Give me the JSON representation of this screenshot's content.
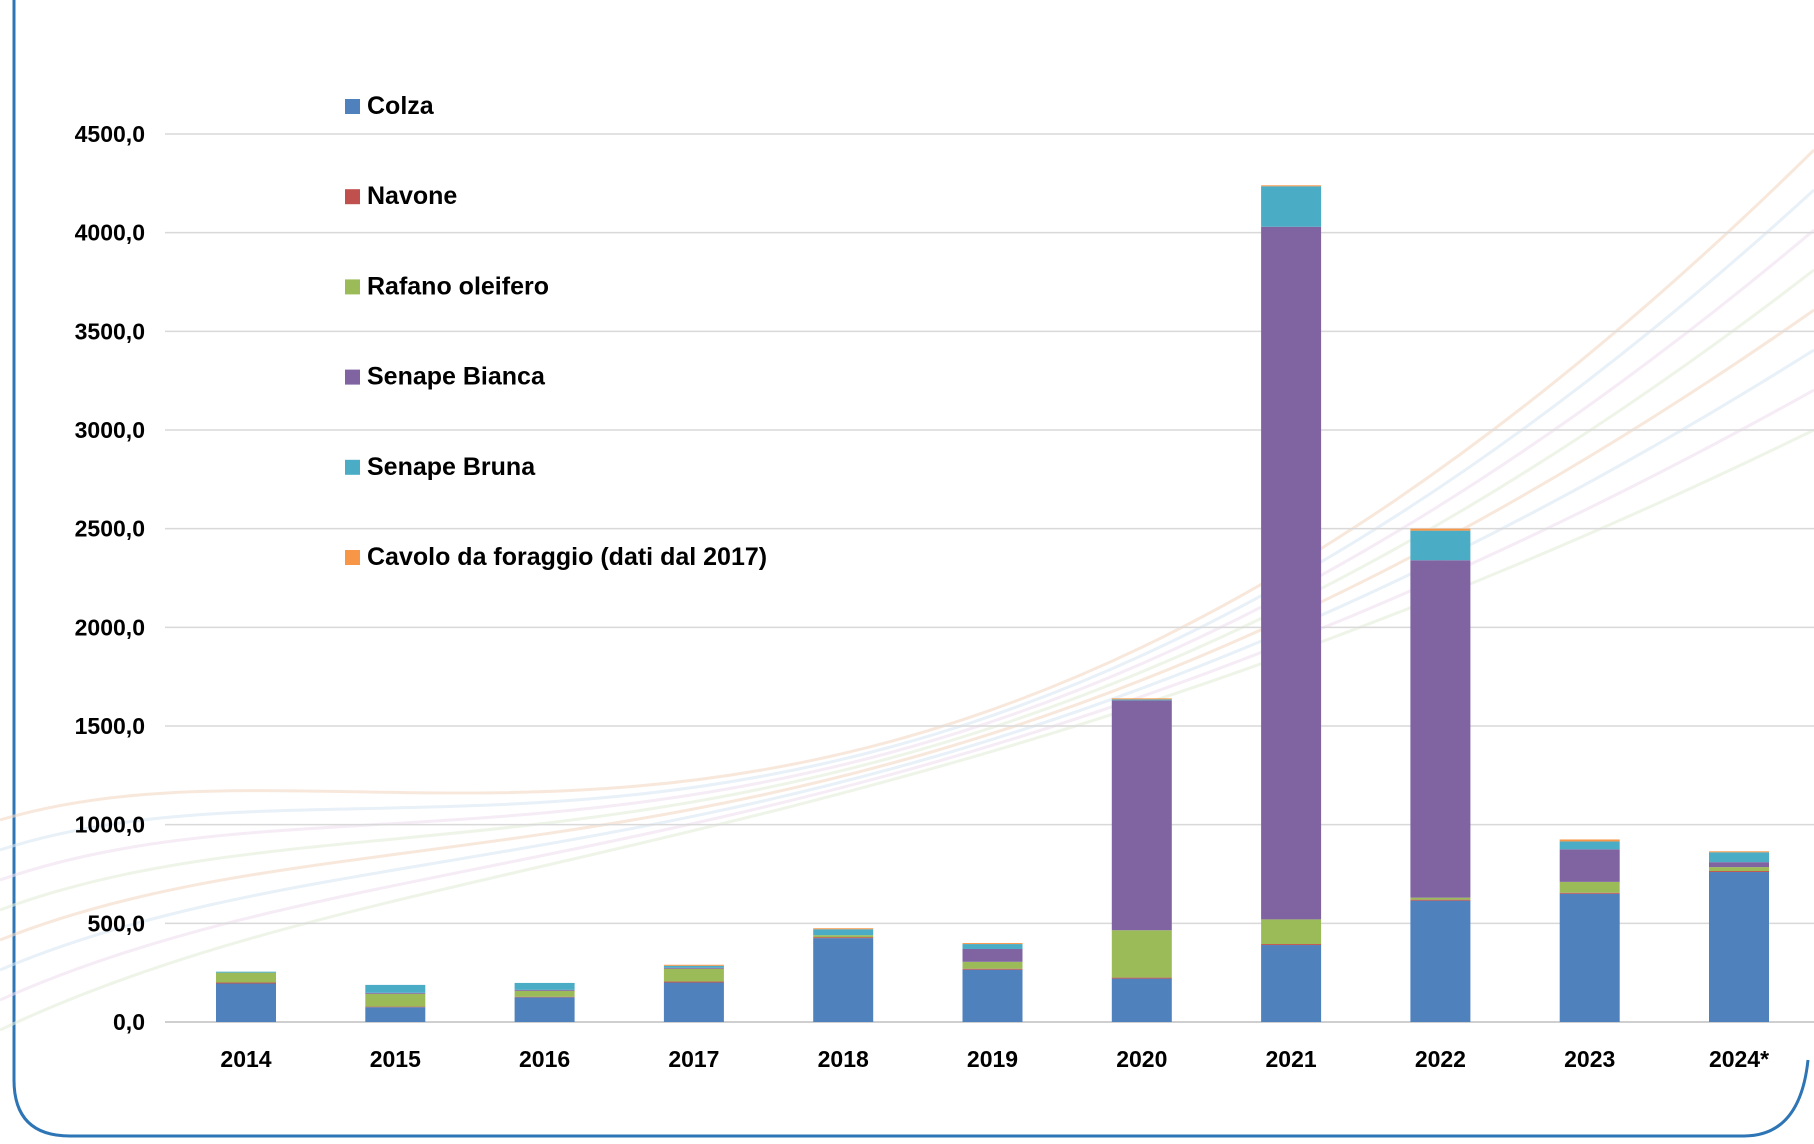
{
  "chart_data": {
    "type": "bar",
    "stacked": true,
    "categories": [
      "2014",
      "2015",
      "2016",
      "2017",
      "2018",
      "2019",
      "2020",
      "2021",
      "2022",
      "2023",
      "2024*"
    ],
    "series": [
      {
        "name": "Colza",
        "color": "#4F81BD",
        "values": [
          195,
          75,
          125,
          200,
          425,
          265,
          220,
          390,
          615,
          650,
          760
        ]
      },
      {
        "name": "Navone",
        "color": "#C0504D",
        "values": [
          5,
          3,
          3,
          5,
          5,
          5,
          5,
          5,
          5,
          5,
          5
        ]
      },
      {
        "name": "Rafano oleifero",
        "color": "#9BBB59",
        "values": [
          50,
          65,
          30,
          65,
          10,
          35,
          240,
          125,
          10,
          55,
          20
        ]
      },
      {
        "name": "Senape Bianca",
        "color": "#8064A2",
        "values": [
          0,
          5,
          5,
          5,
          0,
          65,
          1165,
          3510,
          1710,
          165,
          25
        ]
      },
      {
        "name": "Senape Bruna",
        "color": "#4BACC6",
        "values": [
          5,
          40,
          35,
          10,
          30,
          25,
          5,
          205,
          150,
          40,
          50
        ]
      },
      {
        "name": "Cavolo da foraggio (dati dal 2017)",
        "color": "#F79646",
        "values": [
          0,
          0,
          0,
          5,
          5,
          5,
          5,
          5,
          10,
          10,
          5
        ]
      }
    ],
    "ylim": [
      0,
      4500
    ],
    "yticks": [
      0,
      500,
      1000,
      1500,
      2000,
      2500,
      3000,
      3500,
      4000,
      4500
    ],
    "ytick_labels": [
      "0,0",
      "500,0",
      "1000,0",
      "1500,0",
      "2000,0",
      "2500,0",
      "3000,0",
      "3500,0",
      "4000,0",
      "4500,0"
    ],
    "grid": true,
    "legend_position": "top-left",
    "title": "",
    "xlabel": "",
    "ylabel": ""
  }
}
